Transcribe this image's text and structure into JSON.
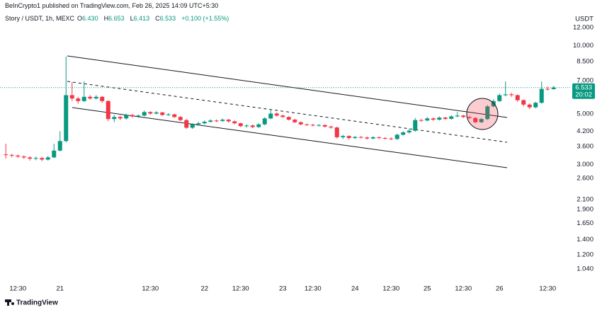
{
  "attribution": "BeInCrypto1 published on TradingView.com, Feb 26, 2025 14:09 UTC+5:30",
  "branding": "TradingView",
  "chart_data": {
    "type": "candlestick",
    "symbol": "Story / USDT, 1h, MEXC",
    "legend": [
      [
        "O",
        "6.430"
      ],
      [
        "H",
        "6.653"
      ],
      [
        "L",
        "6.413"
      ],
      [
        "C",
        "6.533"
      ]
    ],
    "change": "+0.100 (+1.55%)",
    "currency": "USDT",
    "countdown": "20:02",
    "log_scale": true,
    "grid": false,
    "up_color": "#089981",
    "down_color": "#f23645",
    "categories": [
      null,
      null,
      "12:30",
      null,
      null,
      null,
      null,
      null,
      null,
      "21",
      null,
      null,
      null,
      null,
      null,
      null,
      null,
      null,
      null,
      null,
      null,
      null,
      null,
      null,
      "12:30",
      null,
      null,
      null,
      null,
      null,
      null,
      null,
      null,
      "22",
      null,
      null,
      null,
      null,
      null,
      "12:30",
      null,
      null,
      null,
      null,
      null,
      null,
      "23",
      null,
      null,
      null,
      null,
      "12:30",
      null,
      null,
      null,
      null,
      null,
      null,
      "24",
      null,
      null,
      null,
      null,
      null,
      "12:30",
      null,
      null,
      null,
      null,
      null,
      "25",
      null,
      null,
      null,
      null,
      null,
      "12:30",
      null,
      null,
      null,
      null,
      null,
      "26",
      null,
      null,
      null,
      null,
      null,
      null,
      null,
      "12:30",
      null
    ],
    "open": [
      3.32,
      3.3,
      3.28,
      3.25,
      3.22,
      3.18,
      3.2,
      3.15,
      3.22,
      3.45,
      3.8,
      6.05,
      5.85,
      5.7,
      5.95,
      5.85,
      5.95,
      5.7,
      4.75,
      4.85,
      4.78,
      4.95,
      4.88,
      4.92,
      5.1,
      5.02,
      5.08,
      4.95,
      4.98,
      4.85,
      4.7,
      4.35,
      4.5,
      4.55,
      4.62,
      4.68,
      4.66,
      4.72,
      4.64,
      4.55,
      4.42,
      4.45,
      4.38,
      4.5,
      4.78,
      5.02,
      4.92,
      4.85,
      4.72,
      4.6,
      4.5,
      4.48,
      4.45,
      4.47,
      4.4,
      4.36,
      3.95,
      4.0,
      3.92,
      3.96,
      3.94,
      3.9,
      3.95,
      3.92,
      3.9,
      3.88,
      4.05,
      4.15,
      4.22,
      4.7,
      4.68,
      4.78,
      4.72,
      4.82,
      4.76,
      4.88,
      4.92,
      4.85,
      4.8,
      4.6,
      4.75,
      5.4,
      5.7,
      6.05,
      6.1,
      6.05,
      5.75,
      5.5,
      5.35,
      5.6,
      6.45,
      6.43
    ],
    "high": [
      3.7,
      3.34,
      3.32,
      3.29,
      3.26,
      3.25,
      3.24,
      3.27,
      3.7,
      4.2,
      8.95,
      6.9,
      5.95,
      6.95,
      6.05,
      6.05,
      6.0,
      5.75,
      4.95,
      4.92,
      5.02,
      5.0,
      4.98,
      5.18,
      5.14,
      5.15,
      5.1,
      5.04,
      5.02,
      4.9,
      4.75,
      4.55,
      4.62,
      4.68,
      4.74,
      4.73,
      4.78,
      4.76,
      4.68,
      4.58,
      4.5,
      4.49,
      4.55,
      4.84,
      5.2,
      5.08,
      4.97,
      4.89,
      4.76,
      4.64,
      4.54,
      4.52,
      4.51,
      4.5,
      4.44,
      4.4,
      4.05,
      4.03,
      4.0,
      4.0,
      3.98,
      3.99,
      3.98,
      3.95,
      3.94,
      4.1,
      4.2,
      4.3,
      4.8,
      4.76,
      4.85,
      4.82,
      4.88,
      4.86,
      4.94,
      5.1,
      4.96,
      4.9,
      4.84,
      4.8,
      5.48,
      5.8,
      6.15,
      6.95,
      6.2,
      6.1,
      5.8,
      5.56,
      5.66,
      6.95,
      6.6,
      6.653
    ],
    "low": [
      3.18,
      3.22,
      3.2,
      3.17,
      3.12,
      3.13,
      3.1,
      3.12,
      3.2,
      3.42,
      3.75,
      5.7,
      5.55,
      5.65,
      5.78,
      5.8,
      5.6,
      4.65,
      4.6,
      4.7,
      4.72,
      4.82,
      4.82,
      4.88,
      4.96,
      4.98,
      4.9,
      4.9,
      4.8,
      4.65,
      4.3,
      4.3,
      4.45,
      4.5,
      4.58,
      4.6,
      4.62,
      4.58,
      4.5,
      4.38,
      4.36,
      4.33,
      4.34,
      4.46,
      4.74,
      4.86,
      4.8,
      4.68,
      4.56,
      4.46,
      4.43,
      4.41,
      4.41,
      4.36,
      4.3,
      3.9,
      3.88,
      3.85,
      3.88,
      3.9,
      3.86,
      3.87,
      3.88,
      3.86,
      3.84,
      3.85,
      4.02,
      4.1,
      4.18,
      4.62,
      4.64,
      4.66,
      4.68,
      4.7,
      4.72,
      4.84,
      4.8,
      4.74,
      4.55,
      4.56,
      4.7,
      5.35,
      5.65,
      5.98,
      5.95,
      5.65,
      5.4,
      5.25,
      5.3,
      5.55,
      6.35,
      6.413
    ],
    "close": [
      3.3,
      3.28,
      3.25,
      3.22,
      3.18,
      3.2,
      3.15,
      3.22,
      3.45,
      3.8,
      6.05,
      5.85,
      5.7,
      5.95,
      5.85,
      5.95,
      5.7,
      4.75,
      4.85,
      4.78,
      4.95,
      4.88,
      4.92,
      5.1,
      5.02,
      5.08,
      4.95,
      4.98,
      4.85,
      4.7,
      4.35,
      4.5,
      4.55,
      4.62,
      4.68,
      4.66,
      4.72,
      4.64,
      4.55,
      4.42,
      4.45,
      4.38,
      4.5,
      4.78,
      5.02,
      4.92,
      4.85,
      4.72,
      4.6,
      4.5,
      4.48,
      4.45,
      4.47,
      4.4,
      4.36,
      3.95,
      4.0,
      3.92,
      3.96,
      3.94,
      3.9,
      3.95,
      3.92,
      3.9,
      3.88,
      4.05,
      4.15,
      4.22,
      4.7,
      4.68,
      4.78,
      4.72,
      4.82,
      4.76,
      4.88,
      4.92,
      4.85,
      4.8,
      4.6,
      4.75,
      5.4,
      5.7,
      6.05,
      6.1,
      6.05,
      5.75,
      5.5,
      5.35,
      5.6,
      6.45,
      6.43,
      6.533
    ],
    "ylim": [
      0.914,
      15.87
    ],
    "yticks": [
      {
        "value": 12,
        "label": "12.000"
      },
      {
        "value": 10,
        "label": "10.000"
      },
      {
        "value": 8.5,
        "label": "8.500"
      },
      {
        "value": 7,
        "label": "7.000"
      },
      {
        "value": 5,
        "label": "5.000"
      },
      {
        "value": 4.2,
        "label": "4.200"
      },
      {
        "value": 3.6,
        "label": "3.600"
      },
      {
        "value": 3,
        "label": "3.000"
      },
      {
        "value": 2.6,
        "label": "2.600"
      },
      {
        "value": 2.1,
        "label": "2.100"
      },
      {
        "value": 1.9,
        "label": "1.900"
      },
      {
        "value": 1.65,
        "label": "1.650"
      },
      {
        "value": 1.4,
        "label": "1.400"
      },
      {
        "value": 1.2,
        "label": "1.200"
      },
      {
        "value": 1.04,
        "label": "1.040"
      }
    ]
  }
}
